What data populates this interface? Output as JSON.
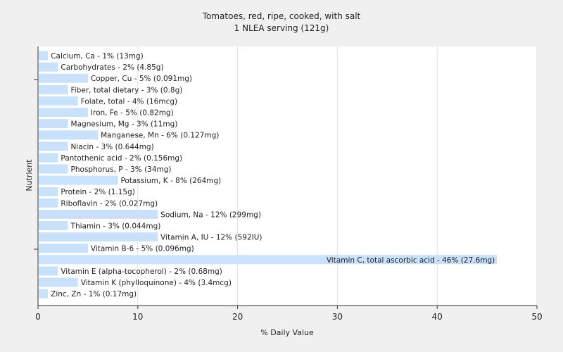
{
  "chart_data": {
    "type": "bar",
    "orientation": "horizontal",
    "title": "Tomatoes, red, ripe, cooked, with salt",
    "subtitle": "1 NLEA serving (121g)",
    "xlabel": "% Daily Value",
    "ylabel": "Nutrient",
    "xlim": [
      0,
      50
    ],
    "xticks": [
      0,
      10,
      20,
      30,
      40,
      50
    ],
    "grid": true,
    "bar_color": "#c9e1fb",
    "categories": [
      "Calcium, Ca",
      "Carbohydrates",
      "Copper, Cu",
      "Fiber, total dietary",
      "Folate, total",
      "Iron, Fe",
      "Magnesium, Mg",
      "Manganese, Mn",
      "Niacin",
      "Pantothenic acid",
      "Phosphorus, P",
      "Potassium, K",
      "Protein",
      "Riboflavin",
      "Sodium, Na",
      "Thiamin",
      "Vitamin A, IU",
      "Vitamin B-6",
      "Vitamin C, total ascorbic acid",
      "Vitamin E (alpha-tocopherol)",
      "Vitamin K (phylloquinone)",
      "Zinc, Zn"
    ],
    "values": [
      1,
      2,
      5,
      3,
      4,
      5,
      3,
      6,
      3,
      2,
      3,
      8,
      2,
      2,
      12,
      3,
      12,
      5,
      46,
      2,
      4,
      1
    ],
    "labels": [
      "Calcium, Ca - 1% (13mg)",
      "Carbohydrates - 2% (4.85g)",
      "Copper, Cu - 5% (0.091mg)",
      "Fiber, total dietary - 3% (0.8g)",
      "Folate, total - 4% (16mcg)",
      "Iron, Fe - 5% (0.82mg)",
      "Magnesium, Mg - 3% (11mg)",
      "Manganese, Mn - 6% (0.127mg)",
      "Niacin - 3% (0.644mg)",
      "Pantothenic acid - 2% (0.156mg)",
      "Phosphorus, P - 3% (34mg)",
      "Potassium, K - 8% (264mg)",
      "Protein - 2% (1.15g)",
      "Riboflavin - 2% (0.027mg)",
      "Sodium, Na - 12% (299mg)",
      "Thiamin - 3% (0.044mg)",
      "Vitamin A, IU - 12% (592IU)",
      "Vitamin B-6 - 5% (0.096mg)",
      "Vitamin C, total ascorbic acid - 46% (27.6mg)",
      "Vitamin E (alpha-tocopherol) - 2% (0.68mg)",
      "Vitamin K (phylloquinone) - 4% (3.4mcg)",
      "Zinc, Zn - 1% (0.17mg)"
    ]
  }
}
